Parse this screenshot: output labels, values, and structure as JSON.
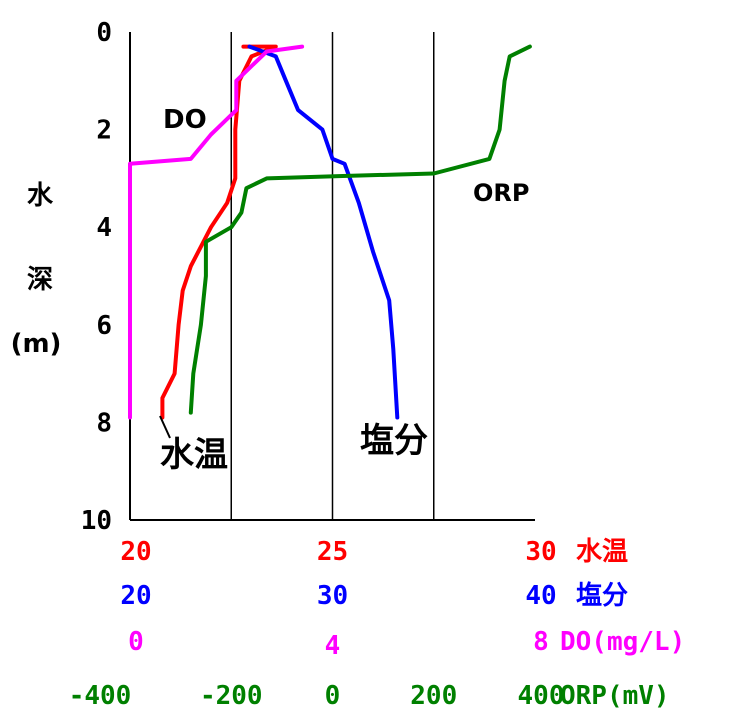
{
  "chart_data": {
    "type": "line",
    "y_axis": {
      "label_chars": [
        "水",
        "深",
        "(m)"
      ],
      "ticks": [
        "0",
        "2",
        "4",
        "6",
        "8",
        "10"
      ],
      "range": [
        0,
        10
      ],
      "inverted": true
    },
    "x_axes": [
      {
        "id": "temp",
        "color": "#ff0000",
        "range": [
          20,
          30
        ],
        "tick_values": [
          20,
          25,
          30
        ],
        "tick_labels": [
          "20",
          "25",
          "30"
        ],
        "title": "水温"
      },
      {
        "id": "salinity",
        "color": "#0000ff",
        "range": [
          20,
          40
        ],
        "tick_values": [
          20,
          30,
          40
        ],
        "tick_labels": [
          "20",
          "30",
          "40"
        ],
        "title": "塩分"
      },
      {
        "id": "do",
        "color": "#ff00ff",
        "range": [
          0,
          8
        ],
        "tick_values": [
          0,
          4,
          8
        ],
        "tick_labels": [
          "0",
          "4",
          "8"
        ],
        "title": "DO(mg/L)"
      },
      {
        "id": "orp",
        "color": "#008000",
        "range": [
          -400,
          400
        ],
        "tick_values": [
          -400,
          -200,
          0,
          200,
          400
        ],
        "tick_labels": [
          "-400",
          "-200",
          "0",
          "200",
          "400"
        ],
        "title": "ORP(mV)"
      }
    ],
    "gridlines_x_fraction": [
      0.25,
      0.5,
      0.75
    ],
    "series": [
      {
        "name": "水温",
        "axis": "temp",
        "color": "#ff0000",
        "points": [
          [
            22.8,
            0.3
          ],
          [
            23.6,
            0.3
          ],
          [
            23.0,
            0.5
          ],
          [
            22.7,
            1.0
          ],
          [
            22.6,
            2.0
          ],
          [
            22.6,
            3.0
          ],
          [
            22.4,
            3.5
          ],
          [
            22.0,
            4.0
          ],
          [
            21.5,
            4.8
          ],
          [
            21.3,
            5.3
          ],
          [
            21.2,
            6.0
          ],
          [
            21.1,
            7.0
          ],
          [
            20.8,
            7.5
          ],
          [
            20.8,
            7.9
          ]
        ]
      },
      {
        "name": "塩分",
        "axis": "salinity",
        "color": "#0000ff",
        "points": [
          [
            25.9,
            0.3
          ],
          [
            27.2,
            0.5
          ],
          [
            27.7,
            1.0
          ],
          [
            28.3,
            1.6
          ],
          [
            29.5,
            2.0
          ],
          [
            30.0,
            2.6
          ],
          [
            30.6,
            2.7
          ],
          [
            31.3,
            3.5
          ],
          [
            32.0,
            4.5
          ],
          [
            32.8,
            5.5
          ],
          [
            33.0,
            6.5
          ],
          [
            33.2,
            7.9
          ]
        ]
      },
      {
        "name": "DO",
        "axis": "do",
        "color": "#ff00ff",
        "points": [
          [
            3.4,
            0.3
          ],
          [
            2.7,
            0.4
          ],
          [
            2.1,
            1.0
          ],
          [
            2.1,
            1.6
          ],
          [
            1.6,
            2.1
          ],
          [
            1.2,
            2.6
          ],
          [
            0.0,
            2.7
          ],
          [
            0.0,
            7.9
          ]
        ]
      },
      {
        "name": "ORP",
        "axis": "orp",
        "color": "#008000",
        "points": [
          [
            390,
            0.3
          ],
          [
            350,
            0.5
          ],
          [
            340,
            1.0
          ],
          [
            330,
            2.0
          ],
          [
            310,
            2.6
          ],
          [
            200,
            2.9
          ],
          [
            20,
            2.95
          ],
          [
            -130,
            3.0
          ],
          [
            -170,
            3.2
          ],
          [
            -180,
            3.7
          ],
          [
            -200,
            4.0
          ],
          [
            -250,
            4.3
          ],
          [
            -250,
            5.0
          ],
          [
            -260,
            6.0
          ],
          [
            -275,
            7.0
          ],
          [
            -280,
            7.8
          ]
        ]
      }
    ],
    "annotations": {
      "do_label": "DO",
      "orp_label": "ORP",
      "temp_label": "水温",
      "salinity_label": "塩分"
    }
  }
}
